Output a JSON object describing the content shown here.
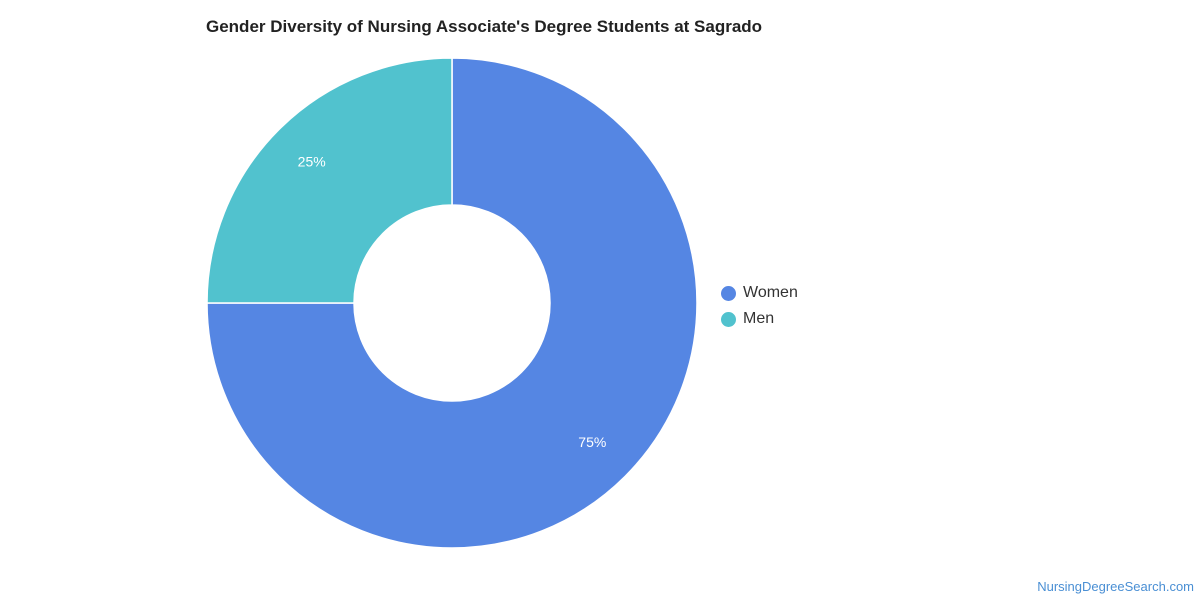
{
  "chart_data": {
    "type": "pie",
    "title": "Gender Diversity of Nursing Associate's Degree Students at Sagrado",
    "categories": [
      "Women",
      "Men"
    ],
    "values": [
      75,
      25
    ],
    "labels": [
      "75%",
      "25%"
    ],
    "colors": [
      "#5586e3",
      "#51c2ce"
    ],
    "donut": true,
    "legend_position": "right"
  },
  "source": "NursingDegreeSearch.com"
}
